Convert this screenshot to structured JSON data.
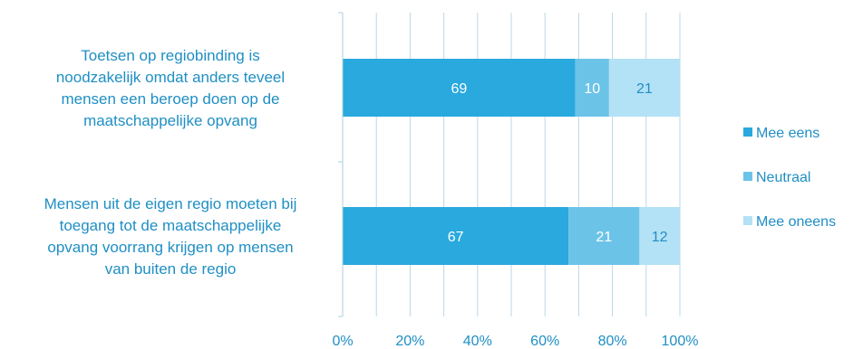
{
  "chart_data": {
    "type": "bar",
    "orientation": "horizontal",
    "stacked": true,
    "percent_scale": true,
    "categories": [
      "Toetsen op regiobinding is noodzakelijk omdat anders teveel mensen een beroep doen op de maatschappelijke opvang",
      "Mensen uit de eigen regio moeten bij toegang tot de maatschappelijke opvang voorrang krijgen op mensen van buiten de regio"
    ],
    "category_lines": [
      [
        "Toetsen op regiobinding is",
        "noodzakelijk omdat anders teveel",
        "mensen een beroep doen op de",
        "maatschappelijke opvang"
      ],
      [
        "Mensen uit de eigen regio moeten bij",
        "toegang tot de maatschappelijke",
        "opvang voorrang krijgen op mensen",
        "van buiten de regio"
      ]
    ],
    "series": [
      {
        "name": "Mee eens",
        "values": [
          69,
          67
        ],
        "color": "#29a9de",
        "label_color": "#ffffff"
      },
      {
        "name": "Neutraal",
        "values": [
          10,
          21
        ],
        "color": "#6cc3e8",
        "label_color": "#ffffff"
      },
      {
        "name": "Mee oneens",
        "values": [
          21,
          12
        ],
        "color": "#b3e1f5",
        "label_color": "#1f8fc4"
      }
    ],
    "xlim": [
      0,
      100
    ],
    "xticks": [
      "0%",
      "20%",
      "40%",
      "60%",
      "80%",
      "100%"
    ],
    "grid": true,
    "legend_position": "right",
    "title": "",
    "xlabel": "",
    "ylabel": ""
  }
}
